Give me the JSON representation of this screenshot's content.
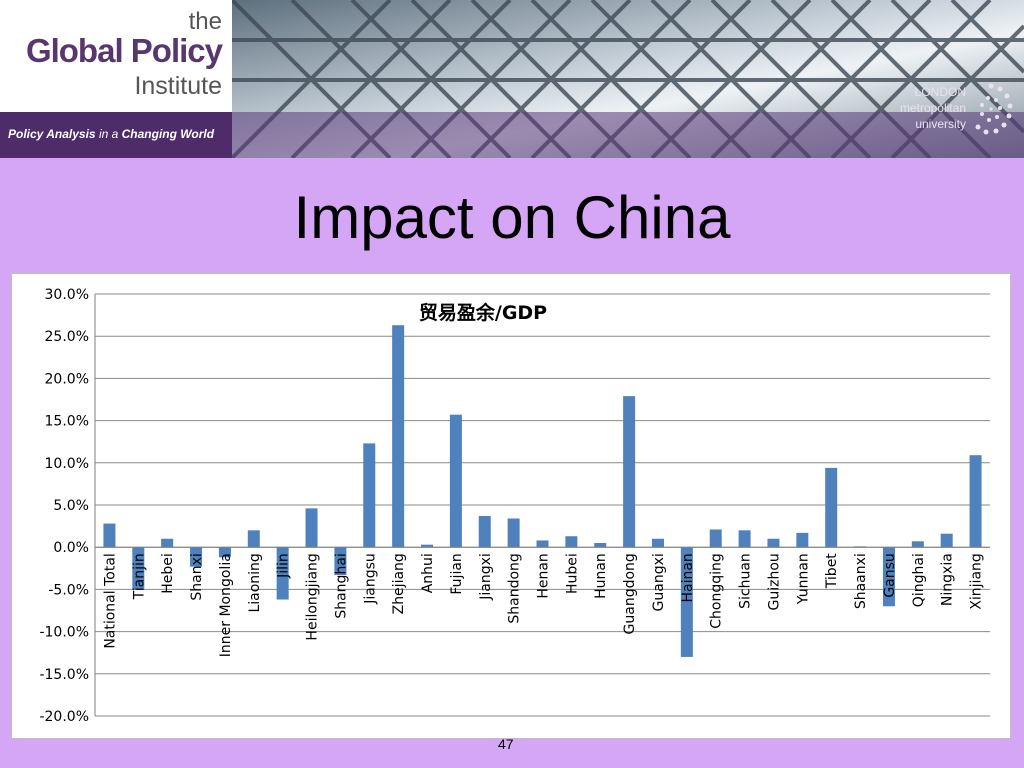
{
  "header": {
    "logo": {
      "line1": "the",
      "line2": "Global Policy",
      "line3": "Institute"
    },
    "tagline_parts": {
      "part1": "Policy Analysis",
      "part2": " in a ",
      "part3": "Changing World"
    },
    "partner_logo": {
      "line1": "LONDON",
      "line2": "metropolitan",
      "line3": "university"
    }
  },
  "slide": {
    "title": "Impact on China",
    "page_number": "47"
  },
  "colors": {
    "background": "#d5a6f5",
    "bar": "#4f81bd",
    "logo_purple": "#58376f"
  },
  "chart_data": {
    "type": "bar",
    "title": "贸易盈余/GDP",
    "xlabel": "",
    "ylabel": "",
    "ylim": [
      -20,
      30
    ],
    "yticks": [
      "30.0%",
      "25.0%",
      "20.0%",
      "15.0%",
      "10.0%",
      "5.0%",
      "0.0%",
      "-5.0%",
      "-10.0%",
      "-15.0%",
      "-20.0%"
    ],
    "grid": true,
    "legend": "none",
    "categories": [
      "National Total",
      "Tianjin",
      "Hebei",
      "Shanxi",
      "Inner Mongolia",
      "Liaoning",
      "Jilin",
      "Heilongjiang",
      "Shanghai",
      "Jiangsu",
      "Zhejiang",
      "Anhui",
      "Fujian",
      "Jiangxi",
      "Shandong",
      "Henan",
      "Hubei",
      "Hunan",
      "Guangdong",
      "Guangxi",
      "Hainan",
      "Chongqing",
      "Sichuan",
      "Guizhou",
      "Yunnan",
      "Tibet",
      "Shaanxi",
      "Gansu",
      "Qinghai",
      "Ningxia",
      "Xinjiang"
    ],
    "values": [
      2.8,
      -5.0,
      1.0,
      -2.3,
      -1.2,
      2.0,
      -6.2,
      4.6,
      -3.3,
      12.3,
      26.3,
      0.3,
      15.7,
      3.7,
      3.4,
      0.8,
      1.3,
      0.5,
      17.9,
      1.0,
      -13.0,
      2.1,
      2.0,
      1.0,
      1.7,
      9.4,
      0.1,
      -7.0,
      0.7,
      1.6,
      10.9
    ]
  }
}
